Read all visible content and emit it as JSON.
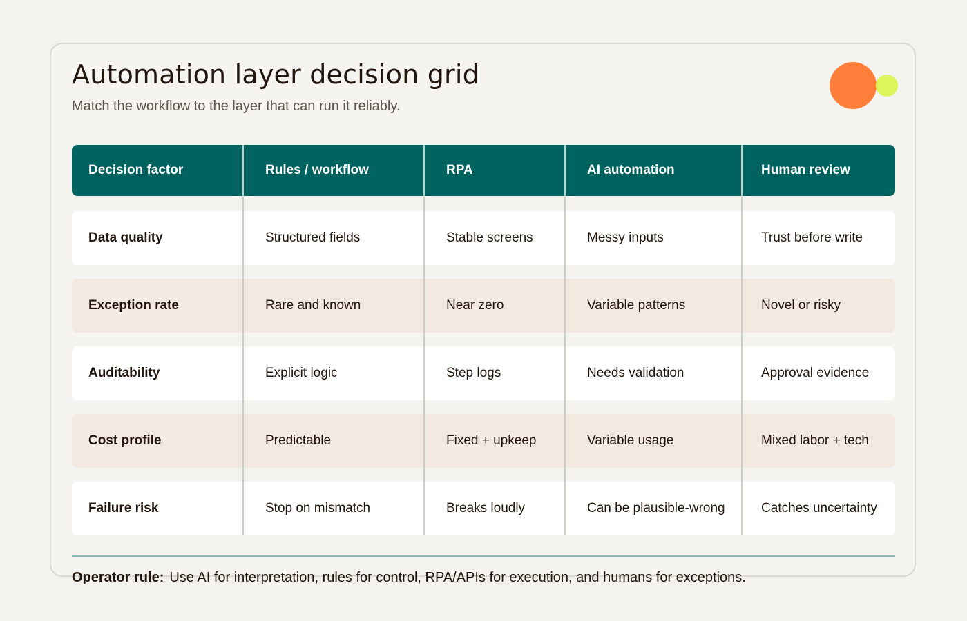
{
  "title": "Automation layer decision grid",
  "subtitle": "Match the workflow to the layer that can run it reliably.",
  "table": {
    "headers": [
      "Decision factor",
      "Rules / workflow",
      "RPA",
      "AI automation",
      "Human review"
    ],
    "rows": [
      {
        "factor": "Data quality",
        "values": [
          "Structured fields",
          "Stable screens",
          "Messy inputs",
          "Trust before write"
        ]
      },
      {
        "factor": "Exception rate",
        "values": [
          "Rare and known",
          "Near zero",
          "Variable patterns",
          "Novel or risky"
        ]
      },
      {
        "factor": "Auditability",
        "values": [
          "Explicit logic",
          "Step logs",
          "Needs validation",
          "Approval evidence"
        ]
      },
      {
        "factor": "Cost profile",
        "values": [
          "Predictable",
          "Fixed + upkeep",
          "Variable usage",
          "Mixed labor + tech"
        ]
      },
      {
        "factor": "Failure risk",
        "values": [
          "Stop on mismatch",
          "Breaks loudly",
          "Can be plausible-wrong",
          "Catches uncertainty"
        ]
      }
    ]
  },
  "footer": {
    "label": "Operator rule:",
    "text": "Use AI for interpretation, rules for control, RPA/APIs for execution, and humans for exceptions."
  },
  "colors": {
    "header_bg": "#006360",
    "accent_orange": "#ff7f3a",
    "accent_lime": "#dcf55a",
    "row_alt": "#f4e9e0"
  }
}
